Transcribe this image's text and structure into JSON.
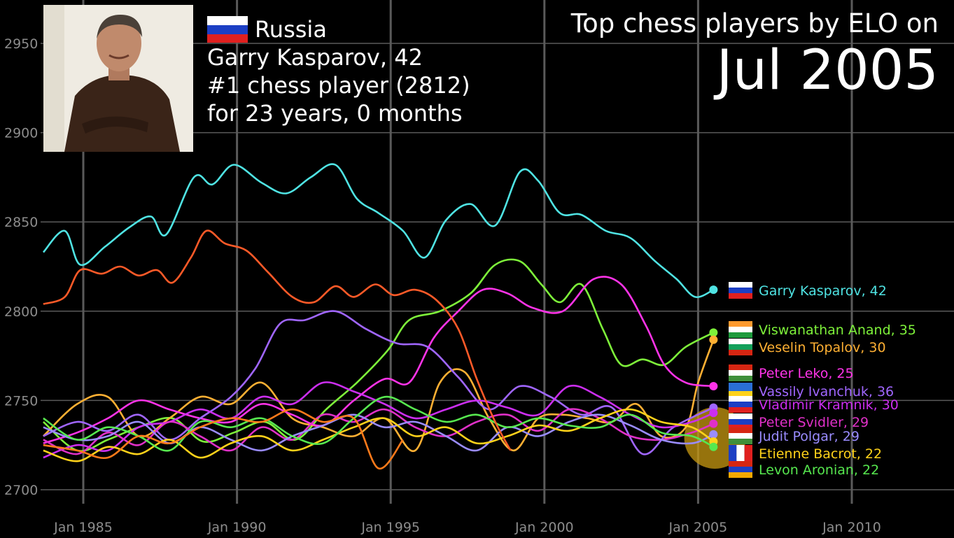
{
  "header": {
    "title": "Top chess players by ELO on",
    "date": "Jul 2005"
  },
  "spotlight": {
    "country": "Russia",
    "name_line": "Garry Kasparov, 42",
    "rank_line": "#1 chess player (2812)",
    "duration_line": "for 23 years, 0 months"
  },
  "chart_data": {
    "type": "line",
    "title": "Top chess players by ELO on Jul 2005",
    "xlabel": "",
    "ylabel": "",
    "xlim": [
      1983.7,
      2013
    ],
    "ylim": [
      2690,
      2965
    ],
    "x_ticks": [
      1985,
      1990,
      1995,
      2000,
      2005,
      2010
    ],
    "x_tick_labels": [
      "Jan 1985",
      "Jan 1990",
      "Jan 1995",
      "Jan 2000",
      "Jan 2005",
      "Jan 2010"
    ],
    "y_ticks": [
      2700,
      2750,
      2800,
      2850,
      2900,
      2950
    ],
    "y_tick_labels": [
      "2700",
      "2750",
      "2800",
      "2850",
      "2900",
      "2950"
    ],
    "grid": true,
    "series": [
      {
        "name": "Garry Kasparov, 42",
        "color": "#4fe3e3",
        "flag": "ru",
        "x": [
          1983.7,
          1984.4,
          1984.9,
          1985.7,
          1986.5,
          1987.2,
          1987.7,
          1988.6,
          1989.2,
          1989.9,
          1990.8,
          1991.6,
          1992.4,
          1993.2,
          1993.9,
          1994.6,
          1995.4,
          1996.1,
          1996.8,
          1997.6,
          1998.4,
          1999.2,
          1999.8,
          2000.5,
          2001.2,
          2002.0,
          2002.8,
          2003.6,
          2004.3,
          2004.9,
          2005.5
        ],
        "values": [
          2833,
          2845,
          2826,
          2836,
          2847,
          2853,
          2843,
          2875,
          2871,
          2882,
          2872,
          2866,
          2875,
          2882,
          2863,
          2855,
          2845,
          2830,
          2851,
          2860,
          2848,
          2878,
          2873,
          2855,
          2854,
          2845,
          2841,
          2828,
          2818,
          2808,
          2812
        ]
      },
      {
        "name": "Viswanathan Anand, 35",
        "color": "#7ef23a",
        "flag": "in",
        "x": [
          1983.7,
          1984.8,
          1985.8,
          1986.8,
          1987.9,
          1988.9,
          1989.9,
          1990.9,
          1991.9,
          1992.9,
          1993.9,
          1994.9,
          1995.6,
          1996.6,
          1997.6,
          1998.4,
          1999.2,
          1999.9,
          2000.5,
          2001.2,
          2001.9,
          2002.5,
          2003.2,
          2003.9,
          2004.6,
          2005.5
        ],
        "values": [
          2738,
          2722,
          2728,
          2735,
          2740,
          2727,
          2732,
          2738,
          2728,
          2745,
          2760,
          2778,
          2795,
          2800,
          2810,
          2826,
          2828,
          2815,
          2805,
          2815,
          2790,
          2770,
          2773,
          2770,
          2780,
          2788
        ]
      },
      {
        "name": "Veselin Topalov, 30",
        "color": "#ffb033",
        "flag": "bg",
        "x": [
          1983.7,
          1984.8,
          1985.8,
          1986.8,
          1987.8,
          1988.8,
          1989.8,
          1990.8,
          1991.8,
          1992.8,
          1993.8,
          1994.8,
          1995.8,
          1996.6,
          1997.4,
          1998.2,
          1999.0,
          1999.8,
          2000.6,
          2001.4,
          2002.2,
          2003.0,
          2003.8,
          2004.6,
          2005.0,
          2005.5
        ],
        "values": [
          2730,
          2748,
          2752,
          2730,
          2740,
          2752,
          2748,
          2760,
          2740,
          2735,
          2730,
          2740,
          2722,
          2760,
          2766,
          2740,
          2722,
          2740,
          2742,
          2740,
          2738,
          2748,
          2730,
          2735,
          2760,
          2784
        ]
      },
      {
        "name": "Peter Leko, 25",
        "color": "#ff33e8",
        "flag": "hu",
        "x": [
          1983.7,
          1984.8,
          1985.8,
          1986.8,
          1987.8,
          1988.8,
          1989.8,
          1990.8,
          1991.8,
          1992.8,
          1993.8,
          1994.8,
          1995.6,
          1996.4,
          1997.2,
          1998.0,
          1998.8,
          1999.6,
          2000.6,
          2001.6,
          2002.5,
          2003.3,
          2003.9,
          2004.6,
          2005.5
        ],
        "values": [
          2726,
          2732,
          2740,
          2750,
          2745,
          2740,
          2738,
          2748,
          2742,
          2736,
          2750,
          2762,
          2760,
          2785,
          2800,
          2812,
          2810,
          2802,
          2800,
          2818,
          2815,
          2792,
          2770,
          2760,
          2758
        ]
      },
      {
        "name": "Vassily Ivanchuk, 36",
        "color": "#a066ff",
        "flag": "ua",
        "x": [
          1983.7,
          1984.8,
          1985.8,
          1986.8,
          1987.8,
          1988.8,
          1989.8,
          1990.6,
          1991.4,
          1992.2,
          1993.2,
          1994.2,
          1995.2,
          1996.2,
          1997.2,
          1998.2,
          1999.2,
          2000.2,
          2001.2,
          2002.2,
          2003.2,
          2004.2,
          2005.5
        ],
        "values": [
          2730,
          2738,
          2733,
          2742,
          2728,
          2740,
          2752,
          2768,
          2793,
          2795,
          2800,
          2790,
          2782,
          2780,
          2763,
          2745,
          2758,
          2752,
          2742,
          2746,
          2720,
          2735,
          2746
        ]
      },
      {
        "name": "Vladimir Kramnik, 30",
        "color": "#cc2ef0",
        "flag": "ru",
        "x": [
          1983.7,
          1984.8,
          1985.8,
          1986.8,
          1987.8,
          1988.8,
          1989.8,
          1990.8,
          1991.8,
          1992.8,
          1993.8,
          1994.8,
          1995.8,
          1996.8,
          1997.8,
          1998.8,
          1999.8,
          2000.8,
          2001.8,
          2002.8,
          2003.8,
          2004.8,
          2005.5
        ],
        "values": [
          2718,
          2725,
          2722,
          2735,
          2738,
          2745,
          2740,
          2752,
          2748,
          2760,
          2755,
          2748,
          2740,
          2745,
          2750,
          2746,
          2742,
          2758,
          2752,
          2742,
          2735,
          2738,
          2743
        ]
      },
      {
        "name": "Peter Svidler, 29",
        "color": "#e030c8",
        "flag": "ru",
        "x": [
          1983.7,
          1984.8,
          1985.8,
          1986.8,
          1987.8,
          1988.8,
          1989.8,
          1990.8,
          1991.8,
          1992.8,
          1993.8,
          1994.8,
          1995.8,
          1996.8,
          1997.8,
          1998.8,
          1999.8,
          2000.8,
          2001.8,
          2002.8,
          2003.8,
          2004.8,
          2005.5
        ],
        "values": [
          2728,
          2720,
          2732,
          2725,
          2738,
          2730,
          2722,
          2735,
          2728,
          2742,
          2738,
          2745,
          2735,
          2730,
          2738,
          2742,
          2733,
          2745,
          2740,
          2730,
          2728,
          2732,
          2737
        ]
      },
      {
        "name": "Judit Polgar, 29",
        "color": "#9a8cff",
        "flag": "hu",
        "x": [
          1983.7,
          1984.8,
          1985.8,
          1986.8,
          1987.8,
          1988.8,
          1989.8,
          1990.8,
          1991.8,
          1992.8,
          1993.8,
          1994.8,
          1995.8,
          1996.8,
          1997.8,
          1998.8,
          1999.8,
          2000.8,
          2001.8,
          2002.8,
          2003.8,
          2004.8,
          2005.5
        ],
        "values": [
          2735,
          2728,
          2730,
          2738,
          2726,
          2735,
          2728,
          2722,
          2730,
          2736,
          2742,
          2735,
          2738,
          2730,
          2722,
          2735,
          2730,
          2738,
          2742,
          2736,
          2728,
          2726,
          2731
        ]
      },
      {
        "name": "Etienne Bacrot, 22",
        "color": "#ffd21a",
        "flag": "fr",
        "x": [
          1983.7,
          1984.8,
          1985.8,
          1986.8,
          1987.8,
          1988.8,
          1989.8,
          1990.8,
          1991.8,
          1992.8,
          1993.8,
          1994.8,
          1995.8,
          1996.8,
          1997.8,
          1998.8,
          1999.8,
          2000.8,
          2001.8,
          2002.8,
          2003.8,
          2004.8,
          2005.5
        ],
        "values": [
          2722,
          2716,
          2724,
          2720,
          2728,
          2718,
          2726,
          2730,
          2722,
          2728,
          2735,
          2740,
          2730,
          2735,
          2726,
          2730,
          2736,
          2733,
          2740,
          2745,
          2738,
          2735,
          2727
        ]
      },
      {
        "name": "Levon Aronian, 22",
        "color": "#57e84f",
        "flag": "am",
        "x": [
          1983.7,
          1984.8,
          1985.8,
          1986.8,
          1987.8,
          1988.8,
          1989.8,
          1990.8,
          1991.8,
          1992.8,
          1993.8,
          1994.8,
          1995.8,
          1996.8,
          1997.8,
          1998.8,
          1999.8,
          2000.8,
          2001.8,
          2002.8,
          2003.8,
          2004.8,
          2005.5
        ],
        "values": [
          2740,
          2728,
          2735,
          2730,
          2722,
          2738,
          2735,
          2740,
          2730,
          2726,
          2740,
          2752,
          2745,
          2738,
          2742,
          2735,
          2740,
          2736,
          2735,
          2742,
          2732,
          2730,
          2724
        ]
      },
      {
        "name": "",
        "color": "#ff5a28",
        "flag": "",
        "x": [
          1983.7,
          1984.4,
          1984.9,
          1985.6,
          1986.2,
          1986.8,
          1987.4,
          1987.9,
          1988.5,
          1989.0,
          1989.6,
          1990.3,
          1991.0,
          1991.8,
          1992.5,
          1993.2,
          1993.8,
          1994.5,
          1995.1,
          1995.8,
          1996.5,
          1997.2,
          1997.8,
          1998.4,
          1998.9
        ],
        "values": [
          2804,
          2808,
          2823,
          2821,
          2825,
          2820,
          2823,
          2816,
          2830,
          2845,
          2838,
          2834,
          2822,
          2808,
          2805,
          2814,
          2808,
          2815,
          2809,
          2812,
          2806,
          2790,
          2762,
          2738,
          2722
        ]
      },
      {
        "name": "",
        "color": "#ff7a1a",
        "flag": "",
        "x": [
          1983.7,
          1984.8,
          1985.8,
          1986.8,
          1987.8,
          1988.8,
          1989.8,
          1990.8,
          1991.8,
          1992.8,
          1993.8,
          1994.6,
          1995.4
        ],
        "values": [
          2725,
          2722,
          2718,
          2730,
          2726,
          2735,
          2740,
          2738,
          2745,
          2738,
          2740,
          2712,
          2728
        ]
      }
    ]
  }
}
